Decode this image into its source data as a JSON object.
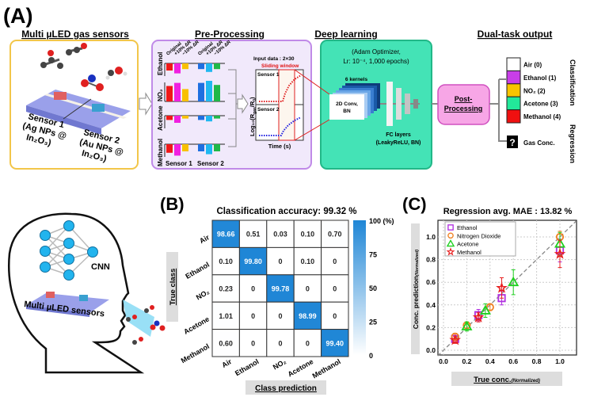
{
  "panel_a": {
    "label": "(A)",
    "sensors": {
      "title": "Multi µLED gas sensors",
      "sensor1": [
        "Sensor 1",
        "(Ag NPs @",
        "In₂O₃)"
      ],
      "sensor2": [
        "Sensor 2",
        "(Au NPs @",
        "In₂O₃)"
      ]
    },
    "preprocessing": {
      "title": "Pre-Processing",
      "bar_labels": [
        "Original",
        "+10% ΔR",
        "−10% ΔR"
      ],
      "gases": [
        "Ethanol",
        "NO₂",
        "Acetone",
        "Methanol"
      ],
      "bar_values": [
        [
          -0.5,
          -0.7,
          -0.4,
          -0.4,
          -0.6,
          -0.4
        ],
        [
          0.75,
          0.9,
          0.6,
          0.9,
          1.0,
          0.8
        ],
        [
          -0.3,
          -0.5,
          -0.2,
          -0.3,
          -0.4,
          -0.2
        ],
        [
          -0.6,
          -0.8,
          -0.5,
          -0.5,
          -0.7,
          -0.5
        ]
      ],
      "bar_colors": [
        "#f01818",
        "#f020e0",
        "#f8c000",
        "#1f6fe0",
        "#20b8f0",
        "#20b848"
      ],
      "sensor_labels": [
        "Sensor 1",
        "Sensor 2"
      ],
      "input_data": "Input data : 2×30",
      "sliding_window": "Sliding window",
      "plot_sensor1": "Sensor 1",
      "plot_sensor2": "Sensor 2",
      "ylabel": "Log₁₀(R",
      "ylabel_sub1": "gas",
      "ylabel_mid": "/R",
      "ylabel_sub2": "0",
      "ylabel_end": ")",
      "xlabel": "Time (s)"
    },
    "deep_learning": {
      "title": "Deep learning",
      "optimizer_line1": "(Adam Optimizer,",
      "optimizer_line2": "Lr: 10⁻⁴, 1,000 epochs)",
      "kernels": "6 kernels",
      "conv": [
        "2D Conv,",
        "BN"
      ],
      "fc": [
        "FC layers",
        "(LeakyReLU, BN)"
      ]
    },
    "post_processing": [
      "Post-",
      "Processing"
    ],
    "output": {
      "title": "Dual-task output",
      "classes": [
        {
          "label": "Air (0)",
          "color": "#ffffff"
        },
        {
          "label": "Ethanol (1)",
          "color": "#c83ee8"
        },
        {
          "label": "NO₂ (2)",
          "color": "#f8c400"
        },
        {
          "label": "Acetone (3)",
          "color": "#22e89a"
        },
        {
          "label": "Methanol (4)",
          "color": "#f01010"
        }
      ],
      "classification": "Classification",
      "regression": "Regression",
      "unknown_symbol": "?",
      "gas_conc": "Gas Conc."
    }
  },
  "head": {
    "cnn": "CNN",
    "sensors": "Multi µLED sensors"
  },
  "chart_data": [
    {
      "type": "heatmap",
      "panel_label": "(B)",
      "title": "Classification accuracy: 99.32 %",
      "xlabel": "Class prediction",
      "ylabel": "True class",
      "categories": [
        "Air",
        "Ethanol",
        "NO₂",
        "Acetone",
        "Methanol"
      ],
      "values": [
        [
          "98.66",
          "0.51",
          "0.03",
          "0.10",
          "0.70"
        ],
        [
          "0.10",
          "99.80",
          "0",
          "0.10",
          "0"
        ],
        [
          "0.23",
          "0",
          "99.78",
          "0",
          "0"
        ],
        [
          "1.01",
          "0",
          "0",
          "98.99",
          "0"
        ],
        [
          "0.60",
          "0",
          "0",
          "0",
          "99.40"
        ]
      ],
      "colorbar": {
        "range": [
          0,
          100
        ],
        "ticks": [
          "100 (%)",
          "75",
          "50",
          "25",
          "0"
        ],
        "color": "#1f86d6"
      }
    },
    {
      "type": "scatter",
      "panel_label": "(C)",
      "title": "Regression avg. MAE : 13.82 %",
      "xlabel": "True conc.",
      "xlabel_suffix": "(Normalized)",
      "ylabel": "Conc. prediction",
      "ylabel_suffix": "(Normalized)",
      "xlim": [
        -0.05,
        1.14
      ],
      "ylim": [
        -0.04,
        1.15
      ],
      "xticks": [
        "0.0",
        "0.2",
        "0.4",
        "0.6",
        "0.8",
        "1.0"
      ],
      "yticks": [
        "0.0",
        "0.2",
        "0.4",
        "0.6",
        "0.8",
        "1.0"
      ],
      "grid": true,
      "legend": "top-left",
      "series": [
        {
          "name": "Ethanol",
          "marker": "square",
          "color": "#b030e0",
          "points": [
            [
              0.1,
              0.1,
              0.03
            ],
            [
              0.3,
              0.31,
              0.05
            ],
            [
              0.5,
              0.46,
              0.06
            ],
            [
              1.0,
              0.88,
              0.1
            ]
          ]
        },
        {
          "name": "Nitrogen Dioxide",
          "marker": "circle",
          "color": "#f08020",
          "points": [
            [
              0.1,
              0.12,
              0.03
            ],
            [
              0.2,
              0.22,
              0.03
            ],
            [
              0.4,
              0.38,
              0.03
            ],
            [
              1.0,
              1.0,
              0.05
            ]
          ]
        },
        {
          "name": "Acetone",
          "marker": "triangle",
          "color": "#20d020",
          "points": [
            [
              0.2,
              0.21,
              0.04
            ],
            [
              0.36,
              0.35,
              0.06
            ],
            [
              0.6,
              0.6,
              0.11
            ],
            [
              1.0,
              0.94,
              0.1
            ]
          ]
        },
        {
          "name": "Methanol",
          "marker": "star",
          "color": "#e82020",
          "points": [
            [
              0.1,
              0.09,
              0.03
            ],
            [
              0.3,
              0.29,
              0.04
            ],
            [
              0.5,
              0.55,
              0.09
            ],
            [
              1.0,
              0.85,
              0.12
            ]
          ]
        }
      ]
    }
  ]
}
